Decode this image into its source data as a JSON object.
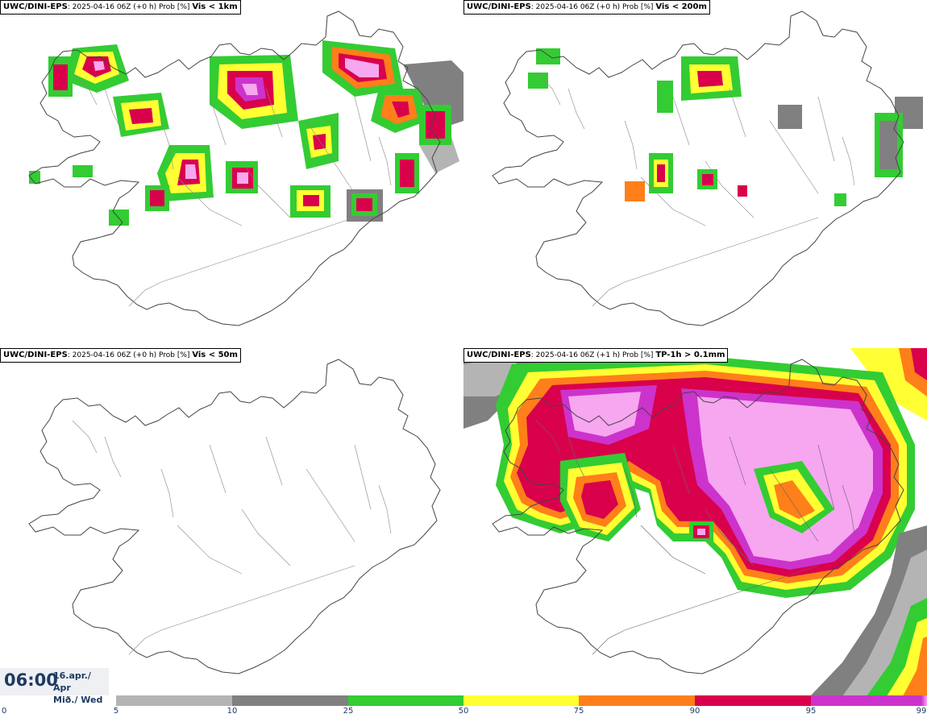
{
  "panels": [
    {
      "id": "vis1km",
      "source": "UWC/DINI-EPS",
      "meta": ": 2025-04-16 06Z (+0 h) Prob [%] ",
      "title": "Vis < 1km"
    },
    {
      "id": "vis200m",
      "source": "UWC/DINI-EPS",
      "meta": ": 2025-04-16 06Z (+0 h) Prob [%] ",
      "title": "Vis < 200m"
    },
    {
      "id": "vis50m",
      "source": "UWC/DINI-EPS",
      "meta": ": 2025-04-16 06Z (+0 h) Prob [%] ",
      "title": "Vis < 50m"
    },
    {
      "id": "tp1h",
      "source": "UWC/DINI-EPS",
      "meta": ": 2025-04-16 06Z (+1 h) Prob [%] ",
      "title": "TP-1h > 0.1mm"
    }
  ],
  "clock": {
    "time": "06:00",
    "date_line1": "16.apr./ Apr",
    "date_line2": "Mið./ Wed"
  },
  "colorbar": {
    "ticks": [
      "0",
      "5",
      "10",
      "25",
      "50",
      "75",
      "90",
      "95",
      "99"
    ],
    "colors": [
      "#ffffff",
      "#b4b4b4",
      "#808080",
      "#33cc33",
      "#ffff33",
      "#ff7f1a",
      "#d9004c",
      "#cc33cc",
      "#f7a6f0"
    ]
  }
}
